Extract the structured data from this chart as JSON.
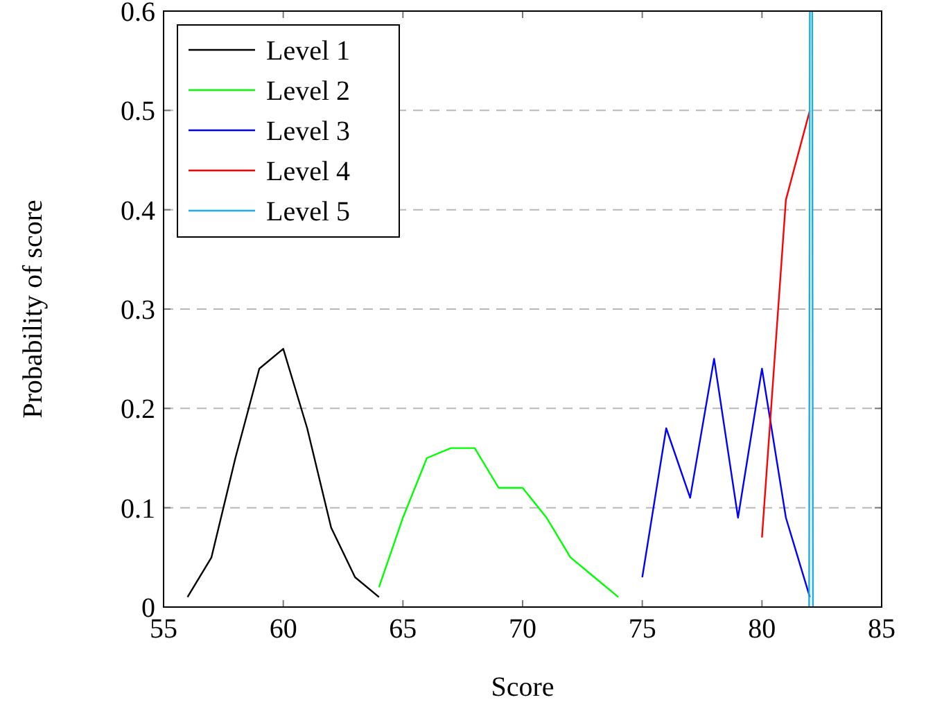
{
  "chart_data": {
    "type": "line",
    "xlabel": "Score",
    "ylabel": "Probability of score",
    "xlim": [
      55,
      85
    ],
    "xticks": [
      55,
      60,
      65,
      70,
      75,
      80,
      85
    ],
    "ylim": [
      0,
      0.6
    ],
    "yticks": [
      0,
      0.1,
      0.2,
      0.3,
      0.4,
      0.5,
      0.6
    ],
    "grid": "y",
    "legend": "top left",
    "marker": "none",
    "line_style": "solid",
    "series": [
      {
        "name": "Level 1",
        "color": "#000000",
        "x": [
          56,
          57,
          58,
          59,
          60,
          61,
          62,
          63,
          64
        ],
        "values": [
          0.01,
          0.05,
          0.15,
          0.24,
          0.26,
          0.18,
          0.08,
          0.03,
          0.01
        ]
      },
      {
        "name": "Level 2",
        "color": "#00ff00",
        "x": [
          64,
          65,
          66,
          67,
          68,
          69,
          70,
          71,
          72,
          73,
          74
        ],
        "values": [
          0.02,
          0.09,
          0.15,
          0.16,
          0.16,
          0.12,
          0.12,
          0.09,
          0.05,
          0.03,
          0.01
        ]
      },
      {
        "name": "Level 3",
        "color": "#0000ff",
        "x": [
          75,
          76,
          77,
          78,
          79,
          80,
          81,
          82
        ],
        "values": [
          0.03,
          0.18,
          0.11,
          0.25,
          0.09,
          0.24,
          0.09,
          0.01
        ]
      },
      {
        "name": "Level 4",
        "color": "#ff0000",
        "x": [
          80,
          81,
          82
        ],
        "values": [
          0.07,
          0.41,
          0.5
        ]
      },
      {
        "name": "Level 5",
        "color": "#1aaee6",
        "x": [
          81.97,
          82,
          82.1,
          82.13
        ],
        "values": [
          0,
          0.6,
          0.6,
          0
        ]
      }
    ]
  }
}
